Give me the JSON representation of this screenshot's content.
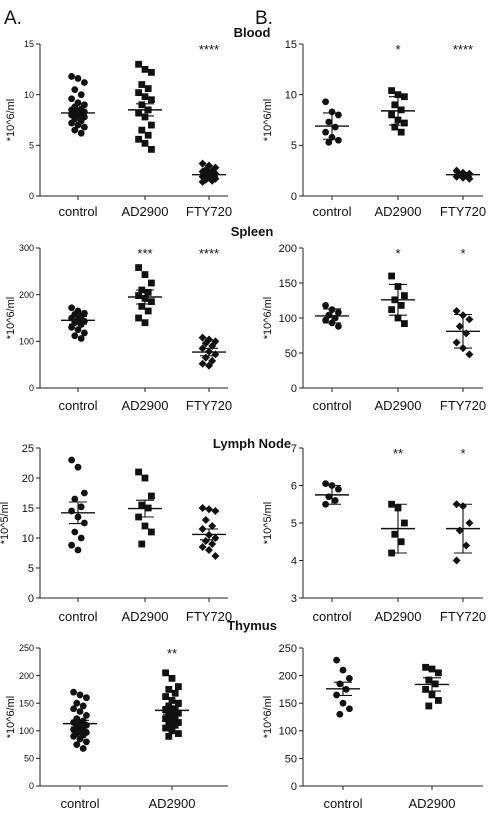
{
  "panel_labels": [
    "A.",
    "B."
  ],
  "row_titles": [
    "Blood",
    "Spleen",
    "Lymph Node",
    "Thymus"
  ],
  "chart_data": [
    {
      "type": "scatter",
      "row": 0,
      "col": 0,
      "title": "Blood",
      "ylabel": "*10^6/ml",
      "ylim": [
        0,
        15
      ],
      "yticks": [
        0,
        5,
        10,
        15
      ],
      "categories": [
        "control",
        "AD2900",
        "FTY720"
      ],
      "markers": [
        "circle",
        "square",
        "diamond"
      ],
      "significance": [
        "",
        "",
        "****"
      ],
      "means": [
        8.2,
        8.5,
        2.1
      ],
      "sems": [
        0.3,
        0.6,
        0.15
      ],
      "series": [
        {
          "values": [
            11.8,
            11.6,
            11.2,
            10.5,
            10.0,
            9.6,
            9.2,
            9.0,
            8.8,
            8.6,
            8.5,
            8.4,
            8.3,
            8.2,
            8.1,
            8.0,
            7.9,
            7.8,
            7.6,
            7.4,
            7.2,
            7.0,
            6.8,
            6.5,
            6.2
          ]
        },
        {
          "values": [
            13.0,
            12.5,
            12.2,
            11.0,
            10.6,
            10.2,
            9.8,
            9.5,
            9.0,
            8.5,
            8.2,
            7.8,
            7.0,
            6.5,
            6.0,
            5.6,
            5.2,
            4.6
          ]
        },
        {
          "values": [
            3.2,
            3.0,
            2.8,
            2.6,
            2.5,
            2.4,
            2.3,
            2.2,
            2.1,
            2.0,
            1.9,
            1.8,
            1.7,
            1.6,
            1.5,
            1.4
          ]
        }
      ]
    },
    {
      "type": "scatter",
      "row": 0,
      "col": 1,
      "title": "",
      "ylabel": "*10^6/ml",
      "ylim": [
        0,
        15
      ],
      "yticks": [
        0,
        5,
        10,
        15
      ],
      "categories": [
        "control",
        "AD2900",
        "FTY720"
      ],
      "markers": [
        "circle",
        "square",
        "diamond"
      ],
      "significance": [
        "",
        "*",
        "****"
      ],
      "means": [
        6.9,
        8.4,
        2.1
      ],
      "sems": [
        1.3,
        1.4,
        0.2
      ],
      "series": [
        {
          "values": [
            9.3,
            8.3,
            8.0,
            7.3,
            6.8,
            6.3,
            5.8,
            5.5,
            5.3
          ]
        },
        {
          "values": [
            10.4,
            10.0,
            9.8,
            9.0,
            8.5,
            8.0,
            7.5,
            7.2,
            6.8,
            6.3
          ]
        },
        {
          "values": [
            2.5,
            2.3,
            2.2,
            2.1,
            2.0,
            1.9,
            1.8,
            1.7
          ]
        }
      ]
    },
    {
      "type": "scatter",
      "row": 1,
      "col": 0,
      "title": "Spleen",
      "ylabel": "*10^6/ml",
      "ylim": [
        0,
        300
      ],
      "yticks": [
        0,
        100,
        200,
        300
      ],
      "categories": [
        "control",
        "AD2900",
        "FTY720"
      ],
      "markers": [
        "circle",
        "square",
        "diamond"
      ],
      "significance": [
        "",
        "***",
        "****"
      ],
      "means": [
        145,
        195,
        77
      ],
      "sems": [
        8,
        15,
        8
      ],
      "series": [
        {
          "values": [
            172,
            165,
            160,
            158,
            154,
            150,
            146,
            143,
            140,
            136,
            130,
            125,
            118,
            112,
            106
          ]
        },
        {
          "values": [
            258,
            243,
            225,
            210,
            205,
            198,
            192,
            185,
            175,
            165,
            150,
            140
          ]
        },
        {
          "values": [
            108,
            104,
            100,
            96,
            90,
            85,
            78,
            72,
            65,
            58,
            52,
            48
          ]
        }
      ]
    },
    {
      "type": "scatter",
      "row": 1,
      "col": 1,
      "title": "",
      "ylabel": "*10^6/ml",
      "ylim": [
        0,
        200
      ],
      "yticks": [
        0,
        50,
        100,
        150,
        200
      ],
      "categories": [
        "control",
        "AD2900",
        "FTY720"
      ],
      "markers": [
        "circle",
        "square",
        "diamond"
      ],
      "significance": [
        "",
        "*",
        "*"
      ],
      "means": [
        103,
        126,
        81
      ],
      "sems": [
        10,
        22,
        24
      ],
      "series": [
        {
          "values": [
            118,
            112,
            108,
            104,
            100,
            97,
            93,
            88
          ]
        },
        {
          "values": [
            160,
            145,
            132,
            126,
            118,
            112,
            100,
            92
          ]
        },
        {
          "values": [
            110,
            104,
            98,
            88,
            78,
            65,
            57,
            48
          ]
        }
      ]
    },
    {
      "type": "scatter",
      "row": 2,
      "col": 0,
      "title": "Lymph Node",
      "ylabel": "*10^5/ml",
      "ylim": [
        0,
        25
      ],
      "yticks": [
        0,
        5,
        10,
        15,
        20,
        25
      ],
      "categories": [
        "control",
        "AD2900",
        "FTY720"
      ],
      "markers": [
        "circle",
        "square",
        "diamond"
      ],
      "significance": [
        "",
        "",
        ""
      ],
      "means": [
        14.2,
        14.9,
        10.6
      ],
      "sems": [
        1.8,
        1.4,
        0.9
      ],
      "series": [
        {
          "values": [
            23.0,
            21.8,
            17.5,
            16.5,
            15.2,
            14.5,
            13.5,
            12.5,
            11.0,
            10.0,
            8.8,
            8.0
          ]
        },
        {
          "values": [
            21.0,
            20.0,
            17.0,
            15.5,
            15.0,
            13.5,
            12.0,
            11.0,
            9.0
          ]
        },
        {
          "values": [
            15.0,
            14.8,
            14.5,
            13.0,
            12.0,
            11.5,
            10.5,
            10.0,
            9.5,
            9.0,
            8.5,
            8.0,
            7.0
          ]
        }
      ]
    },
    {
      "type": "scatter",
      "row": 2,
      "col": 1,
      "title": "",
      "ylabel": "*10^5/ml",
      "ylim": [
        3,
        7
      ],
      "yticks": [
        3,
        4,
        5,
        6,
        7
      ],
      "categories": [
        "control",
        "AD2900",
        "FTY720"
      ],
      "markers": [
        "circle",
        "square",
        "diamond"
      ],
      "significance": [
        "",
        "**",
        "*"
      ],
      "means": [
        5.75,
        4.85,
        4.85
      ],
      "sems": [
        0.25,
        0.65,
        0.65
      ],
      "series": [
        {
          "values": [
            6.05,
            6.0,
            5.9,
            5.7,
            5.6,
            5.5
          ]
        },
        {
          "values": [
            5.5,
            5.4,
            5.0,
            4.7,
            4.5,
            4.2
          ]
        },
        {
          "values": [
            5.5,
            5.45,
            5.0,
            4.8,
            4.4,
            4.0
          ]
        }
      ]
    },
    {
      "type": "scatter",
      "row": 3,
      "col": 0,
      "title": "Thymus",
      "ylabel": "*10^6/ml",
      "ylim": [
        0,
        250
      ],
      "yticks": [
        0,
        50,
        100,
        150,
        200,
        250
      ],
      "categories": [
        "control",
        "AD2900"
      ],
      "markers": [
        "circle",
        "square"
      ],
      "significance": [
        "",
        "**"
      ],
      "means": [
        113,
        137
      ],
      "sems": [
        6,
        7
      ],
      "series": [
        {
          "values": [
            170,
            165,
            160,
            150,
            145,
            140,
            135,
            128,
            122,
            118,
            115,
            112,
            110,
            108,
            105,
            102,
            100,
            97,
            95,
            92,
            90,
            85,
            80,
            75,
            68
          ]
        },
        {
          "values": [
            205,
            195,
            180,
            175,
            168,
            162,
            155,
            150,
            145,
            140,
            138,
            135,
            132,
            128,
            125,
            122,
            118,
            115,
            112,
            110,
            105,
            100,
            95,
            90
          ]
        }
      ]
    },
    {
      "type": "scatter",
      "row": 3,
      "col": 1,
      "title": "",
      "ylabel": "*10^6/ml",
      "ylim": [
        0,
        250
      ],
      "yticks": [
        0,
        50,
        100,
        150,
        200,
        250
      ],
      "categories": [
        "control",
        "AD2900"
      ],
      "markers": [
        "circle",
        "square"
      ],
      "significance": [
        "",
        ""
      ],
      "means": [
        176,
        184
      ],
      "sems": [
        12,
        12
      ],
      "series": [
        {
          "values": [
            228,
            210,
            195,
            185,
            175,
            165,
            150,
            140,
            130
          ]
        },
        {
          "values": [
            215,
            212,
            205,
            192,
            185,
            175,
            165,
            155,
            145
          ]
        }
      ]
    }
  ]
}
